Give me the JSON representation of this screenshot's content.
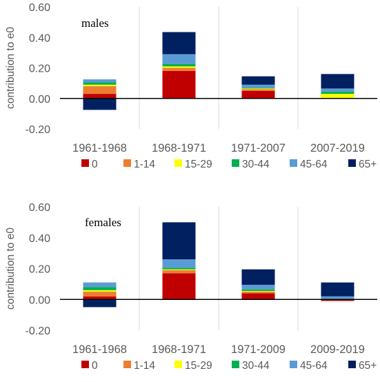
{
  "legend": [
    {
      "label": "0",
      "color": "#C00000"
    },
    {
      "label": "1-14",
      "color": "#ED7D31"
    },
    {
      "label": "15-29",
      "color": "#FFFF00"
    },
    {
      "label": "30-44",
      "color": "#00B050"
    },
    {
      "label": "45-64",
      "color": "#5B9BD5"
    },
    {
      "label": "65+",
      "color": "#002060"
    }
  ],
  "chart_data": [
    {
      "type": "bar",
      "stacked": true,
      "title": "",
      "panel_label": "males",
      "ylabel": "contribution to e0",
      "xlabel": "",
      "ylim": [
        -0.2,
        0.6
      ],
      "yticks": [
        "-0.20",
        "0.00",
        "0.20",
        "0.40",
        "0.60"
      ],
      "categories": [
        "1961-1968",
        "1968-1971",
        "1971-2007",
        "2007-2019"
      ],
      "grid": "vertical separators",
      "legend_position": "bottom",
      "series": [
        {
          "name": "0",
          "values": [
            0.03,
            0.18,
            0.05,
            0.0
          ]
        },
        {
          "name": "1-14",
          "values": [
            0.05,
            0.02,
            0.01,
            0.0
          ]
        },
        {
          "name": "15-29",
          "values": [
            0.01,
            0.01,
            0.005,
            0.03
          ]
        },
        {
          "name": "30-44",
          "values": [
            0.015,
            0.015,
            0.005,
            0.015
          ]
        },
        {
          "name": "45-64",
          "values": [
            0.02,
            0.065,
            0.02,
            0.02
          ]
        },
        {
          "name": "65+",
          "values": [
            -0.075,
            0.145,
            0.055,
            0.095
          ]
        }
      ]
    },
    {
      "type": "bar",
      "stacked": true,
      "title": "",
      "panel_label": "females",
      "ylabel": "contribution to e0",
      "xlabel": "",
      "ylim": [
        -0.2,
        0.6
      ],
      "yticks": [
        "-0.20",
        "0.00",
        "0.20",
        "0.40",
        "0.60"
      ],
      "categories": [
        "1961-1968",
        "1968-1971",
        "1971-2009",
        "2009-2019"
      ],
      "grid": "vertical separators",
      "legend_position": "bottom",
      "series": [
        {
          "name": "0",
          "values": [
            0.02,
            0.17,
            0.04,
            -0.01
          ]
        },
        {
          "name": "1-14",
          "values": [
            0.03,
            0.02,
            0.01,
            0.0
          ]
        },
        {
          "name": "15-29",
          "values": [
            0.01,
            0.005,
            0.005,
            0.0
          ]
        },
        {
          "name": "30-44",
          "values": [
            0.02,
            0.01,
            0.01,
            0.005
          ]
        },
        {
          "name": "45-64",
          "values": [
            0.03,
            0.055,
            0.03,
            0.015
          ]
        },
        {
          "name": "65+",
          "values": [
            -0.05,
            0.24,
            0.1,
            0.09
          ]
        }
      ]
    }
  ]
}
